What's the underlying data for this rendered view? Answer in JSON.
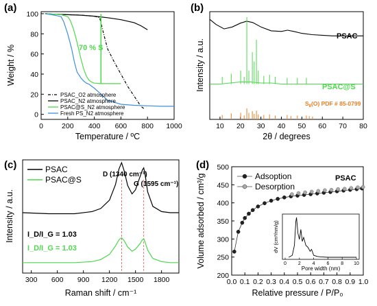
{
  "chart_data": [
    {
      "panel": "(a)",
      "type": "line",
      "xlabel": "Temperature / ºC",
      "ylabel": "Weight / %",
      "xlim": [
        0,
        1000
      ],
      "ylim": [
        -5,
        102
      ],
      "xticks": [
        0,
        200,
        400,
        600,
        800,
        1000
      ],
      "yticks": [
        0,
        20,
        40,
        60,
        80,
        100
      ],
      "annotation": "70 % S",
      "legend_position": "bottom-right",
      "series": [
        {
          "name": "PSAC_O2 atmosphere",
          "color": "#000000",
          "dash": "dash-dot",
          "x": [
            30,
            100,
            200,
            300,
            400,
            440,
            470,
            500,
            550,
            600,
            650,
            700,
            750,
            780
          ],
          "y": [
            100,
            99.5,
            99,
            98.5,
            97.5,
            96,
            80,
            65,
            52,
            40,
            28,
            18,
            8,
            5
          ]
        },
        {
          "name": "PSAC_N2 atmosphere",
          "color": "#000000",
          "dash": "solid",
          "x": [
            30,
            100,
            200,
            300,
            400,
            500,
            600,
            700,
            750,
            800
          ],
          "y": [
            100,
            99.5,
            99,
            98.5,
            97.5,
            96,
            94,
            91,
            88,
            84
          ]
        },
        {
          "name": "PSAC@S_N2 atmosphere",
          "color": "#4cd94c",
          "dash": "solid",
          "x": [
            30,
            150,
            200,
            220,
            240,
            260,
            280,
            300,
            320,
            340,
            360,
            380,
            400,
            450,
            500,
            550,
            600
          ],
          "y": [
            100,
            99,
            97,
            93,
            86,
            77,
            66,
            55,
            45,
            38,
            34,
            32,
            31,
            30.5,
            30.5,
            30.5,
            30.5
          ]
        },
        {
          "name": "Fresh PS_N2 atmosphere",
          "color": "#3c8fe0",
          "dash": "solid",
          "x": [
            30,
            100,
            150,
            170,
            200,
            230,
            250,
            270,
            300,
            320,
            340,
            360,
            380,
            400,
            450,
            500,
            600,
            700,
            800,
            900,
            1000
          ],
          "y": [
            100,
            98.5,
            97,
            92,
            80,
            65,
            52,
            42,
            36,
            33,
            31,
            30,
            28,
            26,
            20,
            14,
            10,
            9,
            8.5,
            8,
            8
          ]
        }
      ]
    },
    {
      "panel": "(b)",
      "type": "line",
      "xlabel": "2θ / degrees",
      "ylabel": "Intensity / a.u.",
      "xlim": [
        5,
        80
      ],
      "xticks": [
        10,
        20,
        30,
        40,
        50,
        60,
        70,
        80
      ],
      "labels": [
        "PSAC",
        "PSAC@S",
        "S8(O) PDF # 85-0799"
      ],
      "label_colors": [
        "#000000",
        "#4cd94c",
        "#e8802a"
      ],
      "series": [
        {
          "name": "PSAC",
          "color": "#000000",
          "x": [
            5,
            8,
            12,
            16,
            20,
            23,
            26,
            30,
            35,
            40,
            43,
            46,
            50,
            55,
            60,
            65,
            70,
            75,
            80
          ],
          "y": [
            0.88,
            0.8,
            0.73,
            0.76,
            0.82,
            0.85,
            0.83,
            0.76,
            0.7,
            0.69,
            0.71,
            0.69,
            0.66,
            0.64,
            0.63,
            0.62,
            0.62,
            0.62,
            0.62
          ]
        },
        {
          "name": "PSAC@S",
          "color": "#4cd94c",
          "x": [
            5,
            10,
            15,
            20,
            25,
            30,
            35,
            40,
            45,
            50,
            55,
            60,
            65,
            70,
            75,
            80
          ],
          "y": [
            0.35,
            0.35,
            0.36,
            0.37,
            0.37,
            0.36,
            0.36,
            0.35,
            0.35,
            0.35,
            0.35,
            0.35,
            0.35,
            0.35,
            0.35,
            0.35
          ],
          "peaks": [
            [
              11.1,
              0.42
            ],
            [
              15.5,
              0.45
            ],
            [
              20.1,
              0.48
            ],
            [
              21.8,
              0.42
            ],
            [
              23.1,
              1.0
            ],
            [
              24.1,
              0.48
            ],
            [
              25.8,
              0.66
            ],
            [
              26.7,
              0.57
            ],
            [
              27.8,
              0.78
            ],
            [
              28.7,
              0.48
            ],
            [
              31.4,
              0.43
            ],
            [
              34.2,
              0.44
            ],
            [
              37.0,
              0.42
            ],
            [
              42.8,
              0.41
            ],
            [
              47.8,
              0.41
            ],
            [
              52.2,
              0.41
            ]
          ]
        },
        {
          "name": "S8(O) PDF # 85-0799",
          "color": "#e8802a",
          "type": "stick",
          "x": [
            11.1,
            15.5,
            20.1,
            21.8,
            23.1,
            24.1,
            25.8,
            26.7,
            27.8,
            28.7,
            31.4,
            34.2,
            37.0,
            42.8,
            44.6,
            47.8,
            52.2,
            53.6,
            55.2
          ],
          "y": [
            0.4,
            0.55,
            0.6,
            0.35,
            1.0,
            0.6,
            0.75,
            0.5,
            0.8,
            0.45,
            0.4,
            0.45,
            0.35,
            0.4,
            0.3,
            0.35,
            0.35,
            0.3,
            0.25
          ]
        }
      ]
    },
    {
      "panel": "(c)",
      "type": "line",
      "xlabel": "Raman shift / cm⁻¹",
      "ylabel": "Intensity / a.u.",
      "xlim": [
        200,
        2000
      ],
      "xticks": [
        300,
        600,
        900,
        1200,
        1500,
        1800
      ],
      "annotations": [
        "D (1340 cm⁻¹)",
        "G (1595 cm⁻¹)"
      ],
      "ratio_psac": "I_D/I_G = 1.03",
      "ratio_psacs": "I_D/I_G = 1.03",
      "legend_position": "top-left",
      "series": [
        {
          "name": "PSAC",
          "color": "#000000",
          "x": [
            200,
            500,
            800,
            1000,
            1100,
            1200,
            1270,
            1310,
            1340,
            1370,
            1410,
            1460,
            1500,
            1550,
            1580,
            1595,
            1610,
            1640,
            1700,
            1800,
            1900,
            2000
          ],
          "y": [
            0.58,
            0.57,
            0.57,
            0.59,
            0.62,
            0.7,
            0.85,
            1.0,
            1.06,
            0.98,
            0.84,
            0.76,
            0.8,
            0.92,
            0.99,
            1.01,
            0.95,
            0.78,
            0.64,
            0.59,
            0.58,
            0.58
          ]
        },
        {
          "name": "PSAC@S",
          "color": "#4cd94c",
          "x": [
            200,
            500,
            800,
            1000,
            1100,
            1200,
            1270,
            1310,
            1340,
            1370,
            1410,
            1460,
            1500,
            1550,
            1580,
            1595,
            1610,
            1640,
            1700,
            1800,
            1900,
            2000
          ],
          "y": [
            0.1,
            0.1,
            0.1,
            0.11,
            0.13,
            0.18,
            0.26,
            0.32,
            0.34,
            0.31,
            0.25,
            0.21,
            0.23,
            0.28,
            0.32,
            0.33,
            0.3,
            0.22,
            0.14,
            0.11,
            0.1,
            0.1
          ]
        }
      ]
    },
    {
      "panel": "(d)",
      "type": "scatter",
      "xlabel": "Relative pressure / P/P₀",
      "ylabel": "Volume adsorbed / cm³/g",
      "xlim": [
        0,
        1.0
      ],
      "ylim": [
        200,
        500
      ],
      "xticks": [
        0.0,
        0.1,
        0.2,
        0.3,
        0.4,
        0.5,
        0.6,
        0.7,
        0.8,
        0.9,
        1.0
      ],
      "yticks": [
        200,
        250,
        300,
        350,
        400,
        450,
        500
      ],
      "title_label": "PSAC",
      "legend_position": "top-left",
      "series": [
        {
          "name": "Adsoption",
          "color": "#222222",
          "x": [
            0.02,
            0.05,
            0.08,
            0.1,
            0.13,
            0.16,
            0.2,
            0.25,
            0.3,
            0.35,
            0.4,
            0.45,
            0.5,
            0.55,
            0.6,
            0.65,
            0.7,
            0.75,
            0.8,
            0.85,
            0.9,
            0.95,
            0.99
          ],
          "y": [
            265,
            320,
            345,
            358,
            370,
            380,
            390,
            399,
            406,
            411,
            415,
            418,
            420,
            422,
            424,
            426,
            428,
            430,
            432,
            434,
            436,
            438,
            440
          ]
        },
        {
          "name": "Desorption",
          "color": "#aaaaaa",
          "x": [
            0.45,
            0.5,
            0.55,
            0.6,
            0.65,
            0.7,
            0.75,
            0.8,
            0.85,
            0.9,
            0.95,
            0.99
          ],
          "y": [
            420,
            423,
            425,
            427,
            429,
            431,
            432,
            434,
            435,
            437,
            439,
            440
          ]
        }
      ],
      "inset": {
        "xlabel": "Pore width (nm)",
        "ylabel": "dV (cm³/nm/g)",
        "xlim": [
          0,
          10
        ],
        "xticks": [
          0,
          2,
          4,
          6,
          8,
          10
        ],
        "x": [
          0.5,
          1.0,
          1.3,
          1.5,
          1.6,
          1.8,
          2.0,
          2.2,
          2.4,
          2.6,
          2.9,
          3.2,
          3.5,
          3.7,
          4.0,
          4.5,
          5,
          6,
          7,
          8,
          9,
          10
        ],
        "y": [
          0.0,
          0.05,
          0.3,
          0.9,
          1.0,
          0.6,
          0.45,
          0.7,
          0.4,
          0.5,
          0.3,
          0.25,
          0.15,
          0.2,
          0.05,
          0.02,
          0.01,
          0.0,
          0.0,
          0.0,
          0.0,
          0.0
        ]
      }
    }
  ]
}
